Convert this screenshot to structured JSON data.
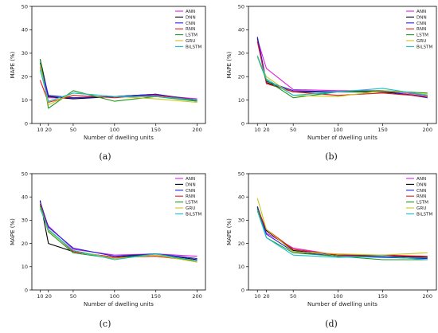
{
  "figure": {
    "panels_caption": [
      "(a)",
      "(b)",
      "(c)",
      "(d)"
    ]
  },
  "legend_colors": {
    "ANN": "#e020e0",
    "DNN": "#000000",
    "CNN": "#1f1fdf",
    "RNN": "#e31a1c",
    "LSTM": "#1a9a1a",
    "GRU": "#c8c81e",
    "BiLSTM": "#17becf"
  },
  "chart_data": [
    {
      "type": "line",
      "caption": "(a)",
      "xlabel": "Number of dwelling units",
      "ylabel": "MAPE (%)",
      "x": [
        10,
        20,
        50,
        100,
        150,
        200
      ],
      "xticks": [
        10,
        20,
        50,
        100,
        150,
        200
      ],
      "yticks": [
        0,
        10,
        20,
        30,
        40,
        50
      ],
      "ylim": [
        0,
        50
      ],
      "legend_position": "top-right",
      "series": [
        {
          "name": "ANN",
          "values": [
            24,
            11,
            11,
            11.5,
            12,
            10.5
          ]
        },
        {
          "name": "DNN",
          "values": [
            27.5,
            11.5,
            10.5,
            11.5,
            12.5,
            9.5
          ]
        },
        {
          "name": "CNN",
          "values": [
            26,
            12,
            11,
            11.5,
            12.5,
            10
          ]
        },
        {
          "name": "RNN",
          "values": [
            18.5,
            9,
            12,
            11,
            12,
            10
          ]
        },
        {
          "name": "LSTM",
          "values": [
            27.5,
            6.5,
            14,
            9.5,
            11.5,
            9.5
          ]
        },
        {
          "name": "GRU",
          "values": [
            25,
            8,
            13,
            11.5,
            10.5,
            9
          ]
        },
        {
          "name": "BiLSTM",
          "values": [
            23,
            9.5,
            13,
            11.5,
            11.5,
            10
          ]
        }
      ]
    },
    {
      "type": "line",
      "caption": "(b)",
      "xlabel": "Number of dwelling units",
      "ylabel": "MAPE (%)",
      "x": [
        10,
        20,
        50,
        100,
        150,
        200
      ],
      "xticks": [
        10,
        20,
        50,
        100,
        150,
        200
      ],
      "yticks": [
        0,
        10,
        20,
        30,
        40,
        50
      ],
      "ylim": [
        0,
        50
      ],
      "legend_position": "top-right",
      "series": [
        {
          "name": "ANN",
          "values": [
            36,
            23.5,
            14.5,
            14,
            14,
            12
          ]
        },
        {
          "name": "DNN",
          "values": [
            36.5,
            17.5,
            13.5,
            13.5,
            13.5,
            11.5
          ]
        },
        {
          "name": "CNN",
          "values": [
            37,
            18,
            14,
            13.5,
            14,
            11
          ]
        },
        {
          "name": "RNN",
          "values": [
            35,
            17,
            13.5,
            12,
            13,
            11.5
          ]
        },
        {
          "name": "LSTM",
          "values": [
            28.5,
            18.5,
            11,
            13.5,
            14,
            13
          ]
        },
        {
          "name": "GRU",
          "values": [
            28.5,
            20,
            12,
            11.5,
            14,
            12.5
          ]
        },
        {
          "name": "BiLSTM",
          "values": [
            29,
            19,
            12,
            13.5,
            15,
            12
          ]
        }
      ]
    },
    {
      "type": "line",
      "caption": "(c)",
      "xlabel": "Number of dwelling units",
      "ylabel": "MAPE (%)",
      "x": [
        10,
        20,
        50,
        100,
        150,
        200
      ],
      "xticks": [
        10,
        20,
        50,
        100,
        150,
        200
      ],
      "yticks": [
        0,
        10,
        20,
        30,
        40,
        50
      ],
      "ylim": [
        0,
        50
      ],
      "legend_position": "top-right",
      "series": [
        {
          "name": "ANN",
          "values": [
            36,
            27.5,
            17.5,
            15,
            15.5,
            14.5
          ]
        },
        {
          "name": "DNN",
          "values": [
            38.5,
            20,
            16.5,
            14,
            15.5,
            13
          ]
        },
        {
          "name": "CNN",
          "values": [
            38,
            27,
            18,
            14.5,
            15.5,
            13.5
          ]
        },
        {
          "name": "RNN",
          "values": [
            37,
            26,
            16.5,
            14,
            14.5,
            12.5
          ]
        },
        {
          "name": "LSTM",
          "values": [
            36.5,
            25,
            16,
            13.5,
            15.5,
            12
          ]
        },
        {
          "name": "GRU",
          "values": [
            35.5,
            25.5,
            17,
            13.5,
            15,
            12
          ]
        },
        {
          "name": "BiLSTM",
          "values": [
            35,
            26,
            17,
            13,
            15.5,
            12.5
          ]
        }
      ]
    },
    {
      "type": "line",
      "caption": "(d)",
      "xlabel": "Number of dwelling units",
      "ylabel": "MAPE (%)",
      "x": [
        10,
        20,
        50,
        100,
        150,
        200
      ],
      "xticks": [
        10,
        20,
        50,
        100,
        150,
        200
      ],
      "yticks": [
        0,
        10,
        20,
        30,
        40,
        50
      ],
      "ylim": [
        0,
        50
      ],
      "legend_position": "top-right",
      "series": [
        {
          "name": "ANN",
          "values": [
            35.5,
            24.5,
            18,
            15,
            15,
            14
          ]
        },
        {
          "name": "DNN",
          "values": [
            35.5,
            25.5,
            17,
            15,
            14.5,
            14
          ]
        },
        {
          "name": "CNN",
          "values": [
            36,
            24,
            16.5,
            14.5,
            14,
            13.5
          ]
        },
        {
          "name": "RNN",
          "values": [
            35,
            26,
            17.5,
            15,
            15,
            14.5
          ]
        },
        {
          "name": "LSTM",
          "values": [
            35,
            22.5,
            16,
            14.5,
            13,
            13
          ]
        },
        {
          "name": "GRU",
          "values": [
            39.5,
            26,
            16.5,
            15.5,
            15,
            16
          ]
        },
        {
          "name": "BiLSTM",
          "values": [
            34,
            22.5,
            15,
            14,
            14.5,
            13
          ]
        }
      ]
    }
  ]
}
